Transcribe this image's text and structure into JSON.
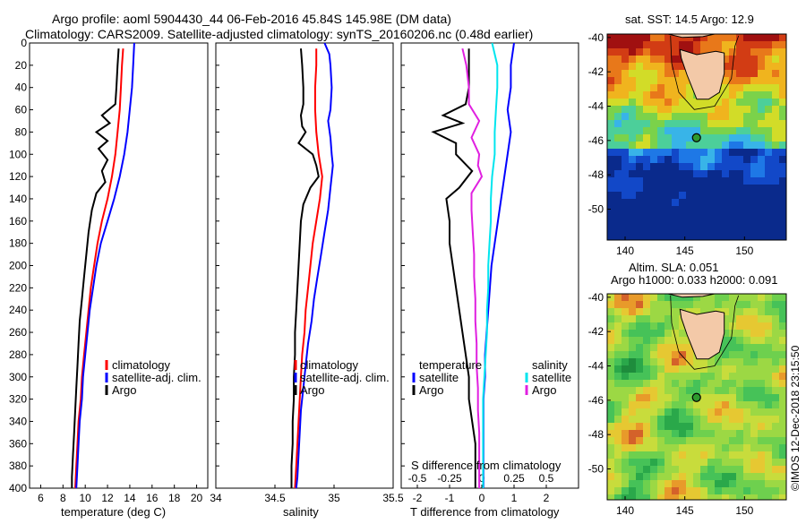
{
  "title": {
    "line1": "Argo profile: aoml 5904430_44 06-Feb-2016 45.84S 145.98E (DM data)",
    "line2": "Climatology: CARS2009. Satellite-adjusted climatology: synTS_20160206.nc (0.48d earlier)"
  },
  "colors": {
    "climatology": "#ff0000",
    "satellite": "#0000ff",
    "argo": "#000000",
    "sat_salinity": "#00e5ee",
    "argo_salinity": "#e020e0"
  },
  "chart_data": [
    {
      "type": "line",
      "id": "temperature",
      "xlabel": "temperature (deg C)",
      "ylabel": "",
      "xlim": [
        5,
        21
      ],
      "ylim": [
        400,
        0
      ],
      "xticks": [
        6,
        8,
        10,
        12,
        14,
        16,
        18,
        20
      ],
      "yticks": [
        0,
        20,
        40,
        60,
        80,
        100,
        120,
        140,
        160,
        180,
        200,
        220,
        240,
        260,
        280,
        300,
        320,
        340,
        360,
        380,
        400
      ],
      "legend": [
        "climatology",
        "satellite-adj. clim.",
        "Argo"
      ],
      "series": [
        {
          "name": "climatology",
          "color": "#ff0000",
          "points": [
            [
              13.4,
              5
            ],
            [
              13.3,
              20
            ],
            [
              13.2,
              40
            ],
            [
              13.1,
              60
            ],
            [
              12.9,
              80
            ],
            [
              12.7,
              100
            ],
            [
              12.4,
              120
            ],
            [
              12.0,
              140
            ],
            [
              11.5,
              160
            ],
            [
              11.1,
              180
            ],
            [
              10.8,
              200
            ],
            [
              10.5,
              220
            ],
            [
              10.3,
              240
            ],
            [
              10.1,
              260
            ],
            [
              9.9,
              280
            ],
            [
              9.7,
              300
            ],
            [
              9.6,
              320
            ],
            [
              9.4,
              340
            ],
            [
              9.3,
              360
            ],
            [
              9.2,
              380
            ],
            [
              9.1,
              400
            ]
          ]
        },
        {
          "name": "satellite-adj. clim.",
          "color": "#0000ff",
          "points": [
            [
              14.4,
              0
            ],
            [
              14.3,
              20
            ],
            [
              14.2,
              40
            ],
            [
              14.0,
              60
            ],
            [
              13.8,
              80
            ],
            [
              13.5,
              100
            ],
            [
              13.1,
              120
            ],
            [
              12.6,
              140
            ],
            [
              12.0,
              160
            ],
            [
              11.4,
              180
            ],
            [
              11.0,
              200
            ],
            [
              10.7,
              220
            ],
            [
              10.4,
              240
            ],
            [
              10.2,
              260
            ],
            [
              10.0,
              280
            ],
            [
              9.8,
              300
            ],
            [
              9.7,
              320
            ],
            [
              9.5,
              340
            ],
            [
              9.4,
              360
            ],
            [
              9.3,
              380
            ],
            [
              9.2,
              400
            ]
          ]
        },
        {
          "name": "Argo",
          "color": "#000000",
          "points": [
            [
              13.0,
              5
            ],
            [
              12.9,
              20
            ],
            [
              12.8,
              40
            ],
            [
              12.7,
              55
            ],
            [
              11.5,
              65
            ],
            [
              12.2,
              72
            ],
            [
              11.0,
              80
            ],
            [
              12.0,
              88
            ],
            [
              11.2,
              95
            ],
            [
              12.0,
              105
            ],
            [
              11.5,
              115
            ],
            [
              11.8,
              125
            ],
            [
              11.0,
              135
            ],
            [
              10.6,
              150
            ],
            [
              10.3,
              170
            ],
            [
              10.1,
              190
            ],
            [
              9.9,
              210
            ],
            [
              9.7,
              230
            ],
            [
              9.5,
              250
            ],
            [
              9.4,
              270
            ],
            [
              9.3,
              290
            ],
            [
              9.2,
              310
            ],
            [
              9.1,
              330
            ],
            [
              9.0,
              350
            ],
            [
              8.9,
              370
            ],
            [
              8.8,
              390
            ],
            [
              8.8,
              400
            ]
          ]
        }
      ]
    },
    {
      "type": "line",
      "id": "salinity",
      "xlabel": "salinity",
      "ylabel": "",
      "xlim": [
        34,
        35.5
      ],
      "ylim": [
        400,
        0
      ],
      "xticks": [
        34,
        34.5,
        35,
        35.5
      ],
      "legend": [
        "climatology",
        "satellite-adj. clim.",
        "Argo"
      ],
      "series": [
        {
          "name": "climatology",
          "color": "#ff0000",
          "points": [
            [
              34.85,
              5
            ],
            [
              34.85,
              20
            ],
            [
              34.84,
              40
            ],
            [
              34.84,
              60
            ],
            [
              34.85,
              80
            ],
            [
              34.87,
              100
            ],
            [
              34.9,
              120
            ],
            [
              34.88,
              140
            ],
            [
              34.85,
              160
            ],
            [
              34.82,
              180
            ],
            [
              34.8,
              200
            ],
            [
              34.78,
              220
            ],
            [
              34.76,
              240
            ],
            [
              34.75,
              260
            ],
            [
              34.73,
              280
            ],
            [
              34.72,
              300
            ],
            [
              34.71,
              320
            ],
            [
              34.7,
              340
            ],
            [
              34.69,
              360
            ],
            [
              34.68,
              380
            ],
            [
              34.67,
              400
            ]
          ]
        },
        {
          "name": "satellite-adj. clim.",
          "color": "#0000ff",
          "points": [
            [
              34.92,
              0
            ],
            [
              34.96,
              10
            ],
            [
              34.97,
              20
            ],
            [
              34.98,
              40
            ],
            [
              34.97,
              60
            ],
            [
              34.95,
              70
            ],
            [
              34.97,
              85
            ],
            [
              34.98,
              100
            ],
            [
              34.99,
              110
            ],
            [
              34.97,
              130
            ],
            [
              34.95,
              150
            ],
            [
              34.92,
              170
            ],
            [
              34.89,
              190
            ],
            [
              34.86,
              210
            ],
            [
              34.83,
              230
            ],
            [
              34.81,
              250
            ],
            [
              34.78,
              270
            ],
            [
              34.76,
              290
            ],
            [
              34.74,
              310
            ],
            [
              34.72,
              330
            ],
            [
              34.71,
              350
            ],
            [
              34.7,
              370
            ],
            [
              34.69,
              390
            ],
            [
              34.68,
              400
            ]
          ]
        },
        {
          "name": "Argo",
          "color": "#000000",
          "points": [
            [
              34.72,
              5
            ],
            [
              34.73,
              20
            ],
            [
              34.74,
              40
            ],
            [
              34.74,
              55
            ],
            [
              34.72,
              65
            ],
            [
              34.73,
              75
            ],
            [
              34.76,
              80
            ],
            [
              34.7,
              90
            ],
            [
              34.82,
              100
            ],
            [
              34.85,
              110
            ],
            [
              34.87,
              120
            ],
            [
              34.8,
              130
            ],
            [
              34.74,
              145
            ],
            [
              34.72,
              160
            ],
            [
              34.71,
              180
            ],
            [
              34.7,
              200
            ],
            [
              34.69,
              220
            ],
            [
              34.68,
              240
            ],
            [
              34.67,
              260
            ],
            [
              34.67,
              280
            ],
            [
              34.66,
              300
            ],
            [
              34.66,
              320
            ],
            [
              34.65,
              340
            ],
            [
              34.65,
              360
            ],
            [
              34.64,
              380
            ],
            [
              34.64,
              400
            ]
          ]
        }
      ]
    },
    {
      "type": "line",
      "id": "differences",
      "xlabel": "T difference from climatology",
      "x2label": "S difference from climatology",
      "xlim": [
        -2.5,
        3
      ],
      "x2lim": [
        -0.625,
        0.75
      ],
      "ylim": [
        400,
        0
      ],
      "xticks": [
        -2,
        -1,
        0,
        1,
        2
      ],
      "x2ticks": [
        -0.5,
        -0.25,
        0,
        0.25,
        0.5
      ],
      "legend_temperature_heading": "temperature",
      "legend_salinity_heading": "salinity",
      "legend_temperature": [
        "satellite",
        "Argo"
      ],
      "legend_salinity": [
        "satellite",
        "Argo"
      ],
      "series": [
        {
          "name": "T satellite",
          "color": "#0000ff",
          "points": [
            [
              1.0,
              0
            ],
            [
              0.9,
              20
            ],
            [
              0.9,
              40
            ],
            [
              0.8,
              60
            ],
            [
              0.9,
              80
            ],
            [
              0.8,
              100
            ],
            [
              0.7,
              120
            ],
            [
              0.6,
              140
            ],
            [
              0.5,
              160
            ],
            [
              0.4,
              180
            ],
            [
              0.3,
              200
            ],
            [
              0.25,
              220
            ],
            [
              0.2,
              240
            ],
            [
              0.15,
              260
            ],
            [
              0.1,
              280
            ],
            [
              0.1,
              300
            ],
            [
              0.05,
              320
            ],
            [
              0.05,
              340
            ],
            [
              0.05,
              360
            ],
            [
              0.05,
              380
            ],
            [
              0.05,
              400
            ]
          ]
        },
        {
          "name": "T Argo",
          "color": "#000000",
          "points": [
            [
              -0.4,
              5
            ],
            [
              -0.4,
              20
            ],
            [
              -0.4,
              40
            ],
            [
              -0.5,
              55
            ],
            [
              -1.2,
              65
            ],
            [
              -0.6,
              72
            ],
            [
              -1.5,
              80
            ],
            [
              -0.8,
              90
            ],
            [
              -0.8,
              100
            ],
            [
              -0.3,
              115
            ],
            [
              -0.7,
              130
            ],
            [
              -1.1,
              140
            ],
            [
              -1.0,
              160
            ],
            [
              -1.0,
              180
            ],
            [
              -0.9,
              200
            ],
            [
              -0.8,
              220
            ],
            [
              -0.7,
              240
            ],
            [
              -0.6,
              260
            ],
            [
              -0.5,
              280
            ],
            [
              -0.4,
              300
            ],
            [
              -0.4,
              320
            ],
            [
              -0.3,
              340
            ],
            [
              -0.2,
              360
            ],
            [
              -0.2,
              380
            ],
            [
              -0.2,
              400
            ]
          ]
        },
        {
          "name": "S satellite",
          "color": "#00e5ee",
          "points": [
            [
              0.08,
              0
            ],
            [
              0.1,
              10
            ],
            [
              0.12,
              20
            ],
            [
              0.12,
              40
            ],
            [
              0.11,
              60
            ],
            [
              0.1,
              80
            ],
            [
              0.1,
              100
            ],
            [
              0.08,
              120
            ],
            [
              0.07,
              140
            ],
            [
              0.07,
              160
            ],
            [
              0.06,
              180
            ],
            [
              0.05,
              200
            ],
            [
              0.05,
              220
            ],
            [
              0.04,
              240
            ],
            [
              0.04,
              260
            ],
            [
              0.03,
              280
            ],
            [
              0.02,
              300
            ],
            [
              0.01,
              320
            ],
            [
              0.01,
              340
            ],
            [
              0.01,
              360
            ],
            [
              0.01,
              380
            ],
            [
              0.01,
              400
            ]
          ]
        },
        {
          "name": "S Argo",
          "color": "#e020e0",
          "points": [
            [
              -0.15,
              5
            ],
            [
              -0.12,
              20
            ],
            [
              -0.1,
              40
            ],
            [
              -0.1,
              55
            ],
            [
              -0.02,
              70
            ],
            [
              -0.08,
              85
            ],
            [
              -0.02,
              100
            ],
            [
              -0.03,
              110
            ],
            [
              0.0,
              120
            ],
            [
              -0.08,
              135
            ],
            [
              -0.08,
              150
            ],
            [
              -0.07,
              170
            ],
            [
              -0.06,
              190
            ],
            [
              -0.06,
              210
            ],
            [
              -0.05,
              230
            ],
            [
              -0.05,
              250
            ],
            [
              -0.04,
              270
            ],
            [
              -0.04,
              290
            ],
            [
              -0.03,
              310
            ],
            [
              -0.03,
              330
            ],
            [
              -0.02,
              350
            ],
            [
              -0.02,
              370
            ],
            [
              -0.02,
              390
            ],
            [
              -0.02,
              400
            ]
          ]
        }
      ]
    },
    {
      "type": "heatmap",
      "id": "sst_map",
      "title": "sat. SST: 14.5 Argo: 12.9",
      "xticks": [
        140,
        145,
        150
      ],
      "yticks": [
        -40,
        -42,
        -44,
        -46,
        -48,
        -50
      ],
      "xlim": [
        138.5,
        153.5
      ],
      "ylim": [
        -51.8,
        -39.8
      ],
      "argo_lon": 145.98,
      "argo_lat": -45.84
    },
    {
      "type": "heatmap",
      "id": "sla_map",
      "title_line1": "Altim. SLA: 0.051",
      "title_line2": "Argo h1000: 0.033 h2000: 0.091",
      "xticks": [
        140,
        145,
        150
      ],
      "yticks": [
        -40,
        -42,
        -44,
        -46,
        -48,
        -50
      ],
      "xlim": [
        138.5,
        153.5
      ],
      "ylim": [
        -51.8,
        -39.8
      ],
      "argo_lon": 145.98,
      "argo_lat": -45.84
    }
  ],
  "copyright": "©IMOS 12-Dec-2018 23:15:50"
}
